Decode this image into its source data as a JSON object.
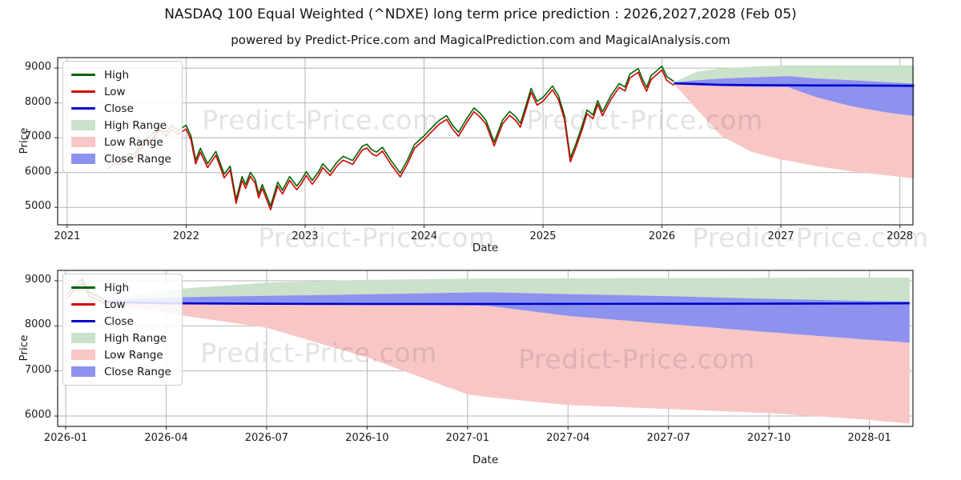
{
  "page": {
    "title": "NASDAQ 100 Equal Weighted (^NDXE) long term price prediction : 2026,2027,2028 (Feb 05)",
    "subtitle": "powered by Predict-Price.com and MagicalPrediction.com and MagicalAnalysis.com",
    "watermark": "Predict-Price.com",
    "background": "#ffffff"
  },
  "colors": {
    "high_line": "#006400",
    "low_line": "#d40000",
    "close_line": "#0000cd",
    "high_fill": "#c9e2c9",
    "low_fill": "#f9c6c6",
    "close_fill": "#8d92ee",
    "grid": "#b4b4b4",
    "frame": "#262626"
  },
  "legend": {
    "position": "upper left",
    "items": [
      {
        "label": "High",
        "swatch": "line",
        "color": "high_line"
      },
      {
        "label": "Low",
        "swatch": "line",
        "color": "low_line"
      },
      {
        "label": "Close",
        "swatch": "line",
        "color": "close_line"
      },
      {
        "label": "High Range",
        "swatch": "patch",
        "color": "high_fill"
      },
      {
        "label": "Low Range",
        "swatch": "patch",
        "color": "low_fill"
      },
      {
        "label": "Close Range",
        "swatch": "patch",
        "color": "close_fill"
      }
    ]
  },
  "chart_data": [
    {
      "id": "top",
      "type": "line",
      "description": "Historical high/low/close 2021-2026 plus 2026-2028 prediction ranges",
      "xlabel": "Date",
      "ylabel": "Price",
      "x_unit": "decimal_year",
      "xlim": [
        2020.92,
        2028.11
      ],
      "ylim": [
        4500,
        9300
      ],
      "grid": true,
      "xticks": [
        {
          "v": 2021,
          "label": "2021"
        },
        {
          "v": 2022,
          "label": "2022"
        },
        {
          "v": 2023,
          "label": "2023"
        },
        {
          "v": 2024,
          "label": "2024"
        },
        {
          "v": 2025,
          "label": "2025"
        },
        {
          "v": 2026,
          "label": "2026"
        },
        {
          "v": 2027,
          "label": "2027"
        },
        {
          "v": 2028,
          "label": "2028"
        }
      ],
      "yticks": [
        {
          "v": 5000,
          "label": "5000"
        },
        {
          "v": 6000,
          "label": "6000"
        },
        {
          "v": 7000,
          "label": "7000"
        },
        {
          "v": 8000,
          "label": "8000"
        },
        {
          "v": 9000,
          "label": "9000"
        }
      ],
      "series": {
        "high_offset": 55,
        "low_offset": -55,
        "close_history": [
          [
            2021.34,
            6150
          ],
          [
            2021.4,
            6320
          ],
          [
            2021.46,
            6290
          ],
          [
            2021.52,
            6500
          ],
          [
            2021.56,
            6450
          ],
          [
            2021.62,
            6750
          ],
          [
            2021.68,
            6950
          ],
          [
            2021.73,
            7080
          ],
          [
            2021.78,
            7280
          ],
          [
            2021.83,
            7100
          ],
          [
            2021.88,
            7300
          ],
          [
            2021.93,
            7150
          ],
          [
            2022.0,
            7300
          ],
          [
            2022.04,
            7000
          ],
          [
            2022.08,
            6300
          ],
          [
            2022.12,
            6640
          ],
          [
            2022.18,
            6200
          ],
          [
            2022.25,
            6550
          ],
          [
            2022.32,
            5900
          ],
          [
            2022.37,
            6130
          ],
          [
            2022.42,
            5170
          ],
          [
            2022.47,
            5830
          ],
          [
            2022.5,
            5600
          ],
          [
            2022.54,
            5950
          ],
          [
            2022.58,
            5750
          ],
          [
            2022.61,
            5330
          ],
          [
            2022.64,
            5600
          ],
          [
            2022.71,
            4990
          ],
          [
            2022.77,
            5670
          ],
          [
            2022.81,
            5440
          ],
          [
            2022.87,
            5830
          ],
          [
            2022.93,
            5560
          ],
          [
            2022.97,
            5740
          ],
          [
            2023.01,
            5970
          ],
          [
            2023.06,
            5720
          ],
          [
            2023.11,
            5950
          ],
          [
            2023.15,
            6200
          ],
          [
            2023.21,
            5970
          ],
          [
            2023.27,
            6250
          ],
          [
            2023.32,
            6410
          ],
          [
            2023.4,
            6290
          ],
          [
            2023.48,
            6700
          ],
          [
            2023.52,
            6760
          ],
          [
            2023.56,
            6600
          ],
          [
            2023.6,
            6530
          ],
          [
            2023.65,
            6670
          ],
          [
            2023.72,
            6300
          ],
          [
            2023.8,
            5930
          ],
          [
            2023.86,
            6300
          ],
          [
            2023.92,
            6750
          ],
          [
            2024.0,
            7000
          ],
          [
            2024.07,
            7250
          ],
          [
            2024.13,
            7450
          ],
          [
            2024.19,
            7580
          ],
          [
            2024.24,
            7300
          ],
          [
            2024.29,
            7100
          ],
          [
            2024.36,
            7500
          ],
          [
            2024.42,
            7800
          ],
          [
            2024.47,
            7650
          ],
          [
            2024.52,
            7450
          ],
          [
            2024.59,
            6820
          ],
          [
            2024.66,
            7450
          ],
          [
            2024.72,
            7700
          ],
          [
            2024.77,
            7550
          ],
          [
            2024.81,
            7360
          ],
          [
            2024.86,
            7900
          ],
          [
            2024.9,
            8360
          ],
          [
            2024.95,
            7990
          ],
          [
            2025.0,
            8100
          ],
          [
            2025.08,
            8430
          ],
          [
            2025.13,
            8150
          ],
          [
            2025.18,
            7580
          ],
          [
            2025.23,
            6360
          ],
          [
            2025.28,
            6800
          ],
          [
            2025.33,
            7300
          ],
          [
            2025.37,
            7740
          ],
          [
            2025.42,
            7600
          ],
          [
            2025.46,
            8010
          ],
          [
            2025.5,
            7690
          ],
          [
            2025.57,
            8150
          ],
          [
            2025.64,
            8500
          ],
          [
            2025.69,
            8400
          ],
          [
            2025.73,
            8770
          ],
          [
            2025.8,
            8930
          ],
          [
            2025.84,
            8600
          ],
          [
            2025.87,
            8390
          ],
          [
            2025.91,
            8730
          ],
          [
            2025.95,
            8850
          ],
          [
            2026.0,
            9000
          ],
          [
            2026.04,
            8700
          ],
          [
            2026.1,
            8560
          ]
        ],
        "prediction": {
          "x": [
            2026.1,
            2026.3,
            2026.5,
            2026.75,
            2027.0,
            2027.06,
            2027.3,
            2027.6,
            2027.9,
            2028.12
          ],
          "high_upper": [
            8590,
            8900,
            8990,
            9040,
            9070,
            9075,
            9080,
            9080,
            9080,
            9080
          ],
          "close_upper": [
            8590,
            8650,
            8700,
            8730,
            8760,
            8770,
            8700,
            8650,
            8590,
            8555
          ],
          "close": [
            8560,
            8540,
            8520,
            8510,
            8505,
            8505,
            8500,
            8500,
            8495,
            8490
          ],
          "close_lower": [
            8545,
            8500,
            8480,
            8465,
            8455,
            8450,
            8160,
            7900,
            7720,
            7620
          ],
          "low_lower": [
            8545,
            7790,
            7050,
            6600,
            6370,
            6340,
            6180,
            6030,
            5920,
            5830
          ]
        }
      }
    },
    {
      "id": "bottom",
      "type": "line",
      "description": "Zoomed prediction ranges Feb 2026 - Feb 2028",
      "xlabel": "Date",
      "ylabel": "Price",
      "x_unit": "months_since_2026_01",
      "xlim": [
        -0.24,
        25.3
      ],
      "ylim": [
        5770,
        9230
      ],
      "grid": true,
      "xticks": [
        {
          "v": 0,
          "label": "2026-01"
        },
        {
          "v": 3,
          "label": "2026-04"
        },
        {
          "v": 6,
          "label": "2026-07"
        },
        {
          "v": 9,
          "label": "2026-10"
        },
        {
          "v": 12,
          "label": "2027-01"
        },
        {
          "v": 15,
          "label": "2027-04"
        },
        {
          "v": 18,
          "label": "2027-07"
        },
        {
          "v": 21,
          "label": "2027-10"
        },
        {
          "v": 24,
          "label": "2028-01"
        }
      ],
      "yticks": [
        {
          "v": 6000,
          "label": "6000"
        },
        {
          "v": 7000,
          "label": "7000"
        },
        {
          "v": 8000,
          "label": "8000"
        },
        {
          "v": 9000,
          "label": "9000"
        }
      ],
      "series": {
        "high_offset": 40,
        "low_offset": -40,
        "close_history": [
          [
            0.05,
            8650
          ],
          [
            0.25,
            8820
          ],
          [
            0.5,
            9000
          ],
          [
            0.7,
            8700
          ],
          [
            0.95,
            8620
          ],
          [
            1.15,
            8540
          ]
        ],
        "prediction": {
          "x": [
            1.15,
            3,
            6,
            9,
            12,
            12.6,
            15,
            18,
            21,
            24,
            25.2
          ],
          "high_upper": [
            8560,
            8800,
            8960,
            9020,
            9045,
            9050,
            9055,
            9060,
            9065,
            9070,
            9070
          ],
          "close_upper": [
            8560,
            8630,
            8665,
            8700,
            8740,
            8745,
            8705,
            8660,
            8600,
            8550,
            8540
          ],
          "close": [
            8530,
            8500,
            8490,
            8487,
            8487,
            8487,
            8488,
            8490,
            8492,
            8497,
            8500
          ],
          "close_lower": [
            8515,
            8480,
            8475,
            8470,
            8455,
            8445,
            8220,
            8040,
            7860,
            7690,
            7630
          ],
          "low_lower": [
            8515,
            8280,
            7960,
            7300,
            6480,
            6420,
            6245,
            6155,
            6065,
            5915,
            5830
          ]
        }
      }
    }
  ]
}
